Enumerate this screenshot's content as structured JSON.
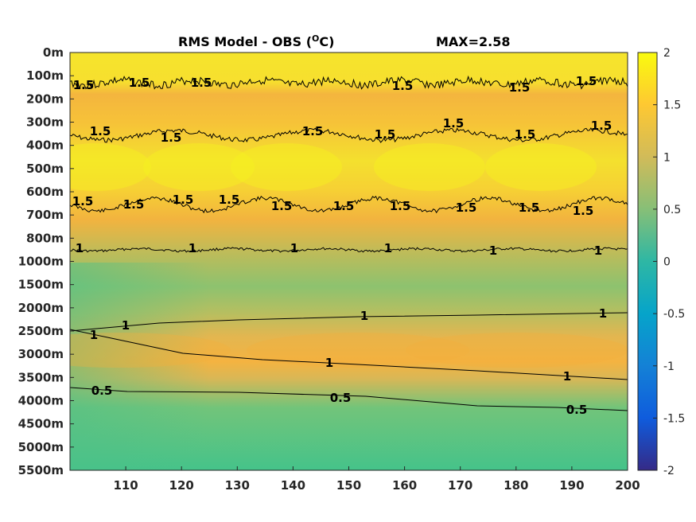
{
  "chart_data": {
    "type": "heatmap",
    "title": "RMS Model - OBS (",
    "title_superscript": "O",
    "title_unit_tail": "C)",
    "max_label": "MAX=2.58",
    "x_ticks": [
      "110",
      "120",
      "130",
      "140",
      "150",
      "160",
      "170",
      "180",
      "190",
      "200"
    ],
    "x_tick_values": [
      110,
      120,
      130,
      140,
      150,
      160,
      170,
      180,
      190,
      200
    ],
    "xlim": [
      100,
      200
    ],
    "y_ticks": [
      "0m",
      "100m",
      "200m",
      "300m",
      "400m",
      "500m",
      "600m",
      "700m",
      "800m",
      "1000m",
      "1500m",
      "2000m",
      "2500m",
      "3000m",
      "3500m",
      "4000m",
      "4500m",
      "5000m",
      "5500m"
    ],
    "colorbar": {
      "ticks": [
        "2",
        "1.5",
        "1",
        "0.5",
        "0",
        "-0.5",
        "-1",
        "-1.5",
        "-2"
      ],
      "tick_values": [
        2,
        1.5,
        1,
        0.5,
        0,
        -0.5,
        -1,
        -1.5,
        -2
      ],
      "range": [
        -2,
        2
      ],
      "colormap": "parula",
      "colors": [
        "#352a87",
        "#0f5cdd",
        "#1481d6",
        "#06a4ca",
        "#2eb7a4",
        "#87bf77",
        "#d1bb59",
        "#fec832",
        "#f9fb0e"
      ]
    },
    "depth_levels": [
      "0m",
      "100m",
      "200m",
      "300m",
      "400m",
      "500m",
      "600m",
      "700m",
      "800m",
      "1000m",
      "1500m",
      "2000m",
      "2500m",
      "3000m",
      "3500m",
      "4000m",
      "4500m",
      "5000m",
      "5500m"
    ],
    "rms_by_depth": [
      1.9,
      1.85,
      1.45,
      1.55,
      1.7,
      1.9,
      1.7,
      1.4,
      1.2,
      0.85,
      0.8,
      0.9,
      1.1,
      1.25,
      1.05,
      0.8,
      0.7,
      0.68,
      0.68
    ],
    "contour_labels": [
      "1.5",
      "1",
      "0.5"
    ]
  }
}
